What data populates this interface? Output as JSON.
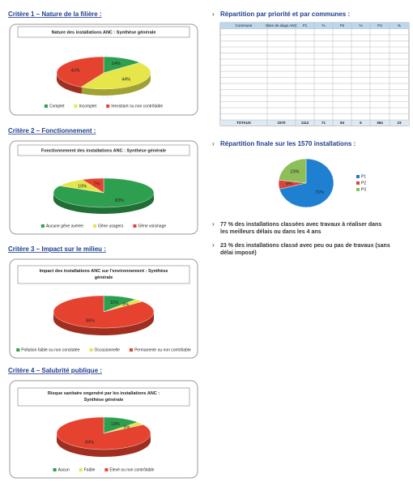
{
  "document": {
    "headings": [
      "Critère 1 – Nature de la filière :",
      "Critère 2 – Fonctionnement :",
      "Critère 3 – Impact sur le milieu :",
      "Critère 4 – Salubrité publique :",
      "Répartition par priorité et par communes :",
      "Répartition finale sur les 1570 installations :"
    ],
    "table": {
      "header": [
        "Commune",
        "Nbre de diags ANC",
        "P1",
        "%",
        "P2",
        "%",
        "P3",
        "%"
      ],
      "total": [
        "TOTAUX",
        "1570",
        "1112",
        "71",
        "94",
        "6",
        "364",
        "23"
      ]
    },
    "bullets": [
      "77 % des installations classées avec travaux à réaliser dans les meilleurs délais ou dans les 4 ans",
      "23 % des installations classé avec peu ou pas de travaux (sans délai imposé)"
    ]
  },
  "chart_data": [
    {
      "type": "pie",
      "title": "Nature des installations ANC : Synthèse générale",
      "categories": [
        "Complet",
        "Incomplet",
        "Inexistant ou non contrôlable"
      ],
      "values": [
        14,
        44,
        42
      ],
      "value_labels": [
        "14%",
        "44%",
        "42%"
      ],
      "colors": [
        "#2e9e4f",
        "#e6e64a",
        "#e5432f"
      ]
    },
    {
      "type": "pie",
      "title": "Fonctionnement des installations ANC : Synthèse générale",
      "categories": [
        "Aucune gêne avérée",
        "Gêne usagers",
        "Gêne voisinage"
      ],
      "values": [
        83,
        10,
        7
      ],
      "value_labels": [
        "83%",
        "10%",
        "7%"
      ],
      "colors": [
        "#2e9e4f",
        "#e6e64a",
        "#e5432f"
      ]
    },
    {
      "type": "pie",
      "title": "Impact des installations ANC sur l'environnement : Synthèse générale",
      "categories": [
        "Pollution faible ou non constatée",
        "Occasionnelle",
        "Permanente ou non contrôlable"
      ],
      "values": [
        11,
        3,
        86
      ],
      "value_labels": [
        "11%",
        "3%",
        "86%"
      ],
      "colors": [
        "#2e9e4f",
        "#e6e64a",
        "#e5432f"
      ]
    },
    {
      "type": "pie",
      "title": "Risque sanitaire engendré par les installations ANC : Synthèse générale",
      "categories": [
        "Aucun",
        "Faible",
        "Elevé ou non contrôlable"
      ],
      "values": [
        13,
        3,
        84
      ],
      "value_labels": [
        "13%",
        "3%",
        "84%"
      ],
      "colors": [
        "#2e9e4f",
        "#e6e64a",
        "#e5432f"
      ]
    },
    {
      "type": "pie",
      "categories": [
        "P1",
        "P2",
        "P3"
      ],
      "values": [
        71,
        6,
        23
      ],
      "value_labels": [
        "71%",
        "6%",
        "23%"
      ],
      "colors": [
        "#1f7fd0",
        "#d9453a",
        "#8cbf5a"
      ]
    }
  ]
}
